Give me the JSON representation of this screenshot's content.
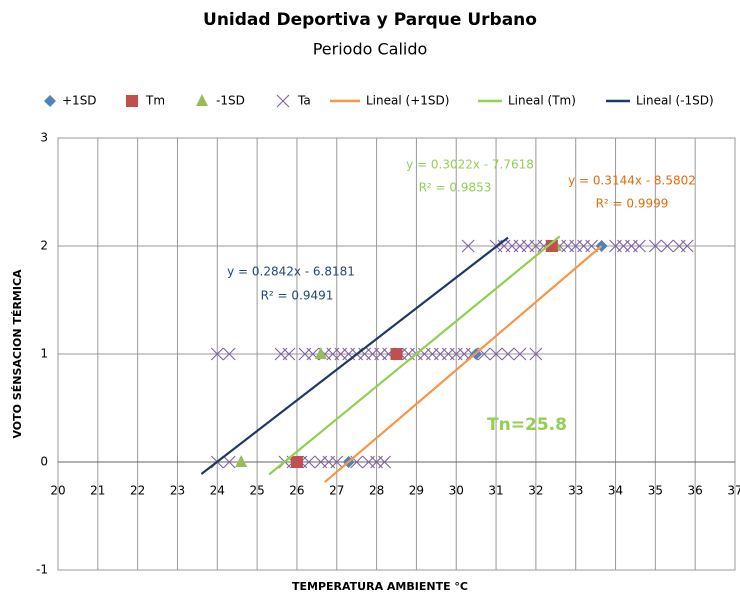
{
  "chart_data": {
    "type": "scatter",
    "title": "Unidad Deportiva y Parque Urbano",
    "subtitle": "Periodo Calido",
    "xlabel": "TEMPERATURA  AMBIENTE  °C",
    "ylabel": "VOTO SÉNSACION TÉRMICA",
    "xlim": [
      20,
      37
    ],
    "xticks": [
      20,
      21,
      22,
      23,
      24,
      25,
      26,
      27,
      28,
      29,
      30,
      31,
      32,
      33,
      34,
      35,
      36,
      37
    ],
    "ylim": [
      -1,
      3
    ],
    "yticks": [
      -1,
      0,
      1,
      2,
      3
    ],
    "grid": true,
    "legend": "top",
    "series": [
      {
        "name": "+1SD",
        "color": "#4f81bd",
        "marker": "diamond",
        "x": [
          27.3,
          30.5,
          33.65
        ],
        "values": [
          0,
          1,
          2
        ]
      },
      {
        "name": "Tm",
        "color": "#c0504d",
        "marker": "square",
        "x": [
          26.0,
          28.5,
          32.4
        ],
        "values": [
          0,
          1,
          2
        ]
      },
      {
        "name": "-1SD",
        "color": "#9bbb59",
        "marker": "triangle",
        "x": [
          24.6,
          26.6,
          32.5
        ],
        "values": [
          0,
          1,
          2
        ]
      },
      {
        "name": "Ta",
        "color": "#8064a2",
        "marker": "x",
        "x": [
          24.0,
          24.3,
          25.7,
          25.9,
          26.1,
          26.3,
          26.6,
          26.8,
          27.0,
          27.5,
          27.8,
          28.0,
          28.2,
          24.0,
          24.3,
          25.6,
          25.8,
          26.2,
          26.4,
          26.7,
          26.9,
          27.1,
          27.3,
          27.5,
          27.7,
          27.9,
          28.1,
          28.3,
          28.6,
          28.8,
          29.0,
          29.2,
          29.4,
          29.6,
          29.8,
          30.0,
          30.2,
          30.4,
          30.7,
          31.0,
          31.3,
          31.6,
          32.0,
          30.3,
          31.0,
          31.2,
          31.4,
          31.6,
          31.8,
          32.0,
          32.2,
          32.4,
          32.6,
          32.8,
          33.0,
          33.2,
          33.4,
          34.0,
          34.2,
          34.4,
          34.6,
          35.0,
          35.3,
          35.6,
          35.8
        ],
        "values": [
          0,
          0,
          0,
          0,
          0,
          0,
          0,
          0,
          0,
          0,
          0,
          0,
          0,
          1,
          1,
          1,
          1,
          1,
          1,
          1,
          1,
          1,
          1,
          1,
          1,
          1,
          1,
          1,
          1,
          1,
          1,
          1,
          1,
          1,
          1,
          1,
          1,
          1,
          1,
          1,
          1,
          1,
          1,
          2,
          2,
          2,
          2,
          2,
          2,
          2,
          2,
          2,
          2,
          2,
          2,
          2,
          2,
          2,
          2,
          2,
          2,
          2,
          2,
          2,
          2
        ]
      }
    ],
    "trendlines": [
      {
        "name": "Lineal (+1SD)",
        "color": "#f79646",
        "x": [
          26.7,
          33.65
        ],
        "values": [
          -0.186,
          2.0
        ]
      },
      {
        "name": "Lineal (Tm)",
        "color": "#92d050",
        "x": [
          25.3,
          32.6
        ],
        "values": [
          -0.116,
          2.09
        ]
      },
      {
        "name": "Lineal (-1SD)",
        "color": "#1f3864",
        "x": [
          23.6,
          31.3
        ],
        "values": [
          -0.111,
          2.078
        ]
      }
    ],
    "annotations": [
      {
        "text": "y = 0.3022x - 7.7618",
        "color": "#92d050"
      },
      {
        "text": "R² = 0.9853",
        "color": "#92d050"
      },
      {
        "text": "y = 0.3144x - 8.5802",
        "color": "#e46c0a"
      },
      {
        "text": "R² = 0.9999",
        "color": "#e46c0a"
      },
      {
        "text": "y = 0.2842x - 6.8181",
        "color": "#1f497d"
      },
      {
        "text": "R² = 0.9491",
        "color": "#1f497d"
      },
      {
        "text": "Tn=25.8",
        "color": "#92d050"
      }
    ]
  }
}
